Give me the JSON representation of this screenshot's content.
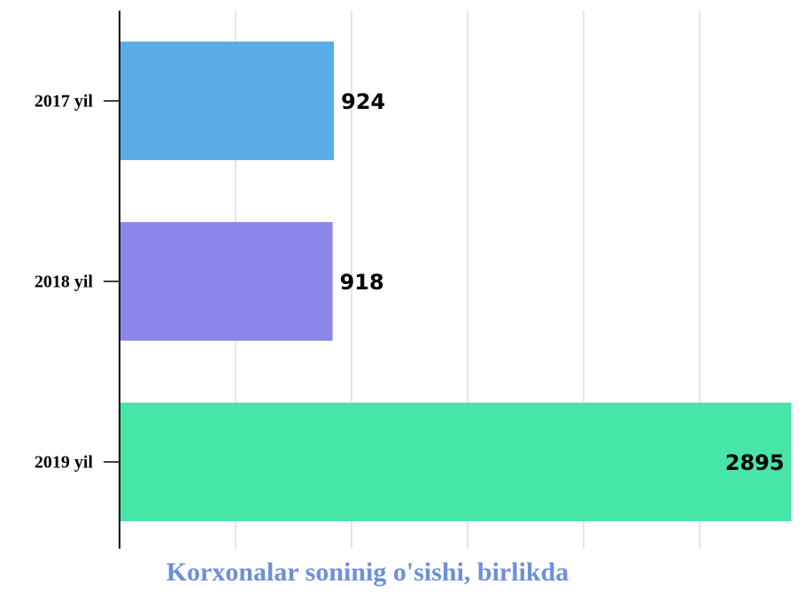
{
  "chart_data": {
    "type": "bar",
    "orientation": "horizontal",
    "title": "Korxonalar soninig o'sishi, birlikda",
    "categories": [
      "2017 yil",
      "2018 yil",
      "2019 yil"
    ],
    "values": [
      924,
      918,
      2895
    ],
    "colors": [
      "#5aade6",
      "#8b87ea",
      "#48e5a8"
    ],
    "xlim": [
      0,
      2900
    ],
    "xticks": [
      0,
      500,
      1000,
      1500,
      2000,
      2500
    ],
    "grid": true
  }
}
